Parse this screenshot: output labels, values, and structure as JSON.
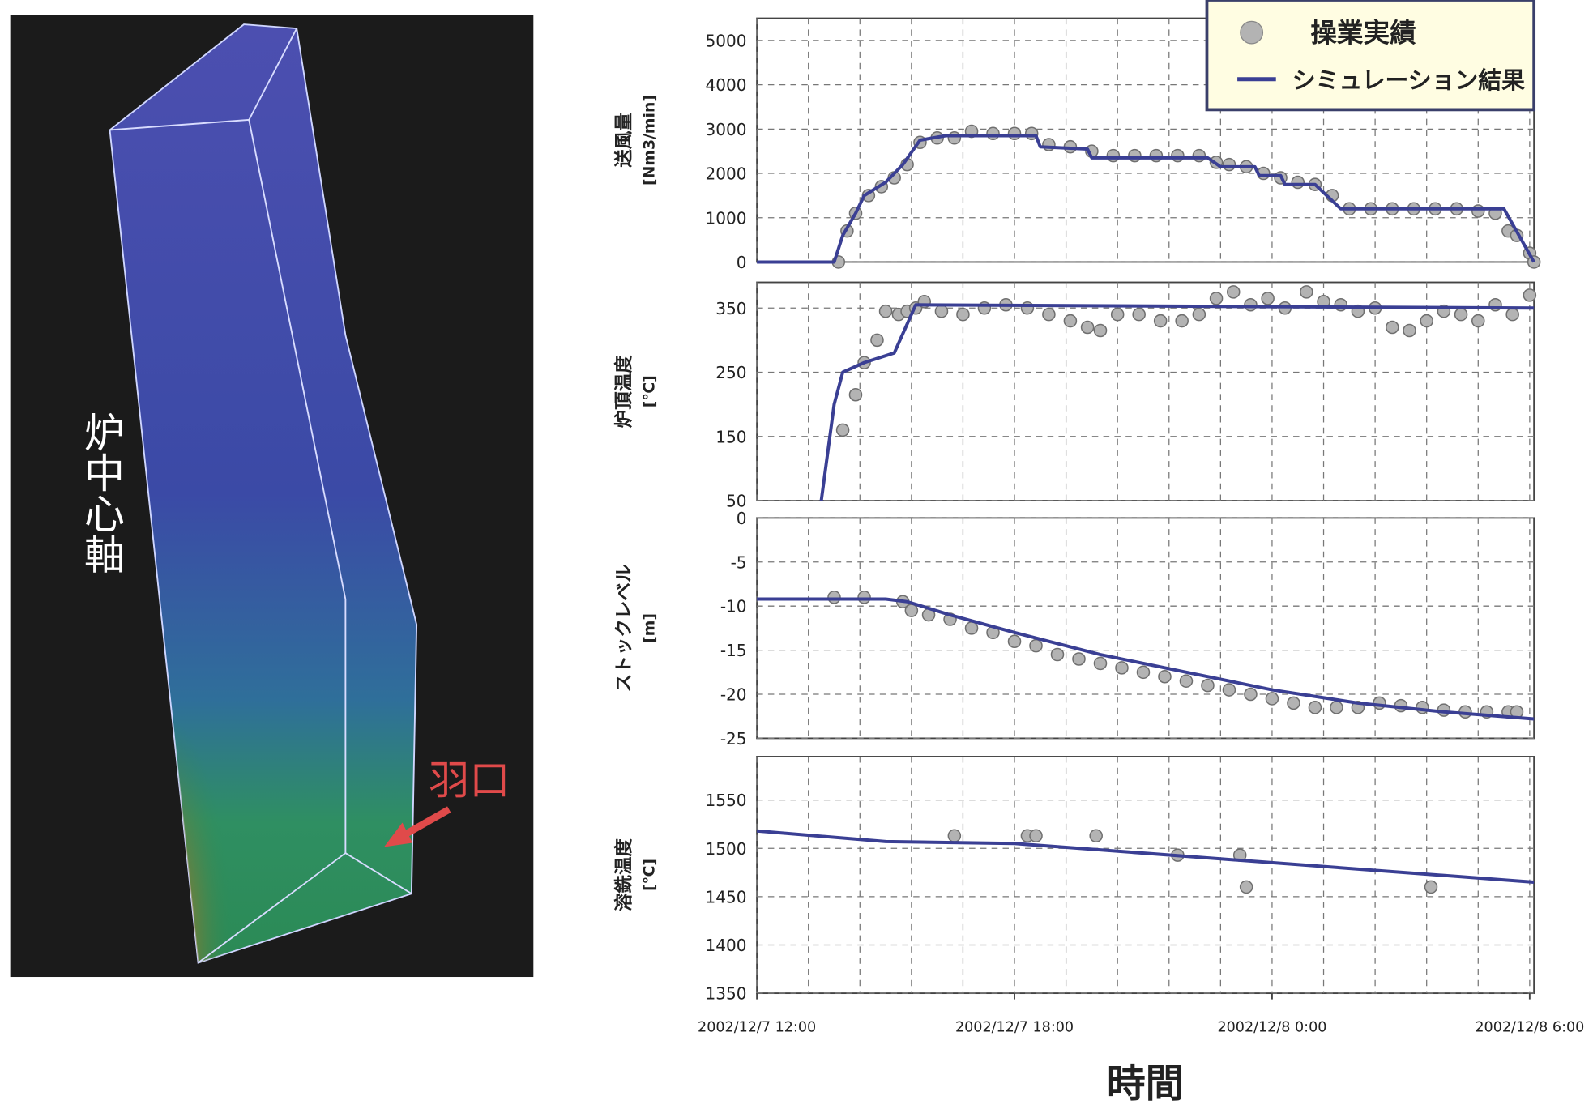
{
  "image": {
    "axis_label": "炉中心軸",
    "tuyere_label": "羽口"
  },
  "chart_data": [
    {
      "type": "line",
      "ylabel": [
        "送風量",
        "[Nm3/min]"
      ],
      "legend": "upper right",
      "grid": true,
      "xlim": [
        0,
        18.1
      ],
      "x_grid": [
        0,
        1.2,
        2.4,
        3.6,
        4.8,
        6,
        7.2,
        8.4,
        9.6,
        10.8,
        12,
        13.2,
        14.4,
        15.6,
        16.8,
        18
      ],
      "ylim": [
        0,
        5500
      ],
      "yticks": [
        0,
        1000,
        2000,
        3000,
        4000,
        5000
      ],
      "series": [
        {
          "name": "操業実績",
          "mode": "markers",
          "color": "#b3b3b3",
          "x": [
            1.9,
            2.1,
            2.3,
            2.6,
            2.9,
            3.2,
            3.5,
            3.8,
            4.2,
            4.6,
            5.0,
            5.5,
            6.0,
            6.4,
            6.8,
            7.3,
            7.8,
            8.3,
            8.8,
            9.3,
            9.8,
            10.3,
            10.7,
            11.0,
            11.4,
            11.8,
            12.2,
            12.6,
            13.0,
            13.4,
            13.8,
            14.3,
            14.8,
            15.3,
            15.8,
            16.3,
            16.8,
            17.2,
            17.5,
            17.7,
            18.0,
            18.1
          ],
          "values": [
            0,
            700,
            1100,
            1500,
            1700,
            1900,
            2200,
            2700,
            2800,
            2800,
            2950,
            2900,
            2900,
            2900,
            2650,
            2600,
            2500,
            2400,
            2400,
            2400,
            2400,
            2400,
            2250,
            2200,
            2150,
            2000,
            1900,
            1800,
            1750,
            1500,
            1200,
            1200,
            1200,
            1200,
            1200,
            1200,
            1150,
            1100,
            700,
            600,
            200,
            0
          ]
        },
        {
          "name": "シミュレーション結果",
          "mode": "line",
          "color": "#3a3f94",
          "x": [
            0,
            1.8,
            2.0,
            2.3,
            2.5,
            3.0,
            3.4,
            3.8,
            4.4,
            6.5,
            6.6,
            7.7,
            7.8,
            10.5,
            10.8,
            11.6,
            11.7,
            12.2,
            12.3,
            13.0,
            13.6,
            17.4,
            18.1
          ],
          "values": [
            0,
            0,
            600,
            1100,
            1500,
            1800,
            2200,
            2750,
            2850,
            2850,
            2600,
            2550,
            2350,
            2350,
            2150,
            2150,
            1950,
            1950,
            1750,
            1750,
            1200,
            1200,
            0
          ]
        }
      ]
    },
    {
      "type": "line",
      "ylabel": [
        "炉頂温度",
        "[℃]"
      ],
      "grid": true,
      "xlim": [
        0,
        18.1
      ],
      "x_grid": [
        0,
        1.2,
        2.4,
        3.6,
        4.8,
        6,
        7.2,
        8.4,
        9.6,
        10.8,
        12,
        13.2,
        14.4,
        15.6,
        16.8,
        18
      ],
      "ylim": [
        50,
        390
      ],
      "yticks": [
        50,
        150,
        250,
        350
      ],
      "series": [
        {
          "mode": "markers",
          "color": "#b3b3b3",
          "x": [
            2.0,
            2.3,
            2.5,
            2.8,
            3.0,
            3.3,
            3.5,
            3.7,
            3.9,
            4.3,
            4.8,
            5.3,
            5.8,
            6.3,
            6.8,
            7.3,
            7.7,
            8.0,
            8.4,
            8.9,
            9.4,
            9.9,
            10.3,
            10.7,
            11.1,
            11.5,
            11.9,
            12.3,
            12.8,
            13.2,
            13.6,
            14.0,
            14.4,
            14.8,
            15.2,
            15.6,
            16.0,
            16.4,
            16.8,
            17.2,
            17.6,
            18.0
          ],
          "values": [
            160,
            215,
            265,
            300,
            345,
            340,
            345,
            350,
            360,
            345,
            340,
            350,
            355,
            350,
            340,
            330,
            320,
            315,
            340,
            340,
            330,
            330,
            340,
            365,
            375,
            355,
            365,
            350,
            375,
            360,
            355,
            345,
            350,
            320,
            315,
            330,
            345,
            340,
            330,
            355,
            340,
            370
          ]
        },
        {
          "mode": "line",
          "color": "#3a3f94",
          "x": [
            1.5,
            1.8,
            2.0,
            2.5,
            3.2,
            3.7,
            18.1
          ],
          "values": [
            50,
            200,
            250,
            265,
            280,
            355,
            350
          ]
        }
      ]
    },
    {
      "type": "line",
      "ylabel": [
        "ストックレベル",
        "[m]"
      ],
      "grid": true,
      "xlim": [
        0,
        18.1
      ],
      "x_grid": [
        0,
        1.2,
        2.4,
        3.6,
        4.8,
        6,
        7.2,
        8.4,
        9.6,
        10.8,
        12,
        13.2,
        14.4,
        15.6,
        16.8,
        18
      ],
      "ylim": [
        -25,
        0
      ],
      "yticks": [
        0,
        -5,
        -10,
        -15,
        -20,
        -25
      ],
      "series": [
        {
          "mode": "markers",
          "color": "#b3b3b3",
          "x": [
            1.8,
            2.5,
            3.4,
            3.6,
            4.0,
            4.5,
            5.0,
            5.5,
            6.0,
            6.5,
            7.0,
            7.5,
            8.0,
            8.5,
            9.0,
            9.5,
            10.0,
            10.5,
            11.0,
            11.5,
            12.0,
            12.5,
            13.0,
            13.5,
            14.0,
            14.5,
            15.0,
            15.5,
            16.0,
            16.5,
            17.0,
            17.5,
            17.7
          ],
          "values": [
            -9,
            -9,
            -9.5,
            -10.5,
            -11,
            -11.5,
            -12.5,
            -13,
            -14,
            -14.5,
            -15.5,
            -16,
            -16.5,
            -17,
            -17.5,
            -18,
            -18.5,
            -19,
            -19.5,
            -20,
            -20.5,
            -21,
            -21.5,
            -21.5,
            -21.5,
            -21,
            -21.3,
            -21.5,
            -21.8,
            -22,
            -22,
            -22,
            -22
          ]
        },
        {
          "mode": "line",
          "color": "#3a3f94",
          "x": [
            0,
            3.0,
            3.5,
            4.5,
            6,
            8,
            10,
            12,
            14,
            16,
            18.1
          ],
          "values": [
            -9.2,
            -9.2,
            -9.5,
            -11,
            -13,
            -15.5,
            -17.5,
            -19.5,
            -21,
            -22,
            -22.8
          ]
        }
      ]
    },
    {
      "type": "line",
      "ylabel": [
        "溶銑温度",
        "[℃]"
      ],
      "xlabel": "時間",
      "grid": true,
      "xlim": [
        0,
        18.1
      ],
      "x_grid": [
        0,
        1.2,
        2.4,
        3.6,
        4.8,
        6,
        7.2,
        8.4,
        9.6,
        10.8,
        12,
        13.2,
        14.4,
        15.6,
        16.8,
        18
      ],
      "xticks": [
        {
          "value": 0,
          "label": "2002/12/7 12:00"
        },
        {
          "value": 6,
          "label": "2002/12/7 18:00"
        },
        {
          "value": 12,
          "label": "2002/12/8 0:00"
        },
        {
          "value": 18,
          "label": "2002/12/8 6:00"
        }
      ],
      "ylim": [
        1350,
        1595
      ],
      "yticks": [
        1350,
        1400,
        1450,
        1500,
        1550
      ],
      "series": [
        {
          "mode": "markers",
          "color": "#b3b3b3",
          "x": [
            4.6,
            6.3,
            6.5,
            7.9,
            9.8,
            11.25,
            11.4,
            15.7
          ],
          "values": [
            1513,
            1513,
            1513,
            1513,
            1493,
            1493,
            1460,
            1460
          ]
        },
        {
          "mode": "line",
          "color": "#3a3f94",
          "x": [
            0,
            3.0,
            6.0,
            18.1
          ],
          "values": [
            1518,
            1507,
            1505,
            1465
          ]
        }
      ]
    }
  ]
}
